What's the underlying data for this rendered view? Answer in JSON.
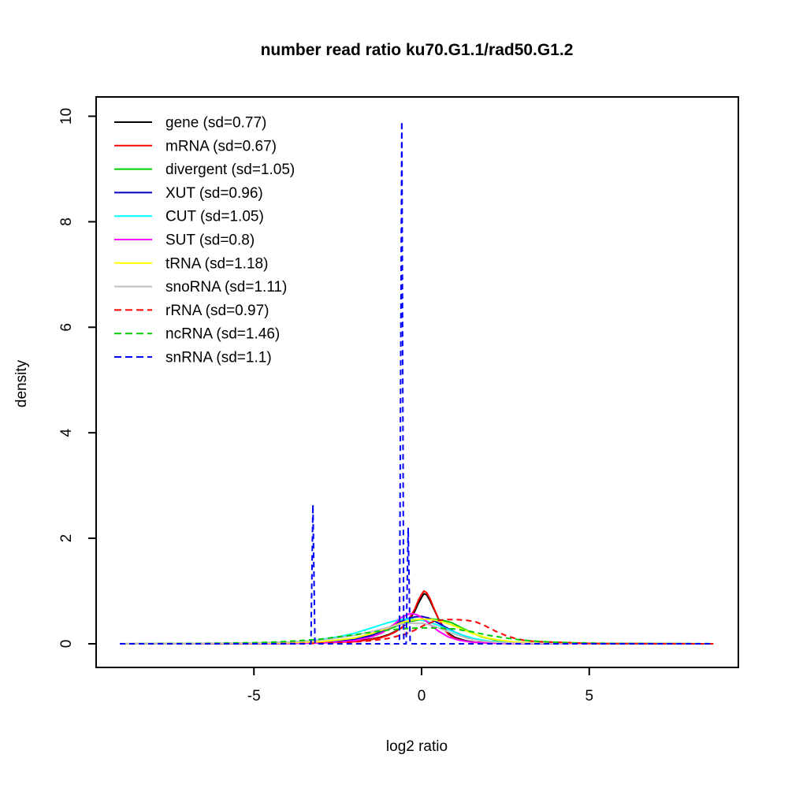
{
  "title": "number read ratio ku70.G1.1/rad50.G1.2",
  "chart_data": {
    "type": "line",
    "title": "number read ratio ku70.G1.1/rad50.G1.2",
    "xlabel": "log2 ratio",
    "ylabel": "density",
    "xlim": [
      -9.7,
      9.4
    ],
    "ylim": [
      -0.45,
      10.35
    ],
    "xticks": [
      -5,
      0,
      5
    ],
    "yticks": [
      0,
      2,
      4,
      6,
      8,
      10
    ],
    "grid": false,
    "legend_position": "top-left",
    "legend_box": false,
    "series": [
      {
        "name": "gene",
        "label": "gene (sd=0.77)",
        "sd": 0.77,
        "color": "#000000",
        "style": "solid",
        "points": [
          [
            -9,
            0
          ],
          [
            -5,
            0.005
          ],
          [
            -4,
            0.01
          ],
          [
            -3,
            0.02
          ],
          [
            -2.5,
            0.03
          ],
          [
            -2,
            0.05
          ],
          [
            -1.5,
            0.09
          ],
          [
            -1.2,
            0.13
          ],
          [
            -1,
            0.17
          ],
          [
            -0.8,
            0.23
          ],
          [
            -0.6,
            0.3
          ],
          [
            -0.4,
            0.42
          ],
          [
            -0.2,
            0.62
          ],
          [
            -0.1,
            0.76
          ],
          [
            0,
            0.88
          ],
          [
            0.07,
            0.95
          ],
          [
            0.15,
            0.93
          ],
          [
            0.25,
            0.82
          ],
          [
            0.35,
            0.68
          ],
          [
            0.5,
            0.48
          ],
          [
            0.65,
            0.32
          ],
          [
            0.8,
            0.2
          ],
          [
            1,
            0.12
          ],
          [
            1.3,
            0.06
          ],
          [
            1.6,
            0.03
          ],
          [
            2,
            0.02
          ],
          [
            2.5,
            0.01
          ],
          [
            3.5,
            0.005
          ],
          [
            5,
            0
          ],
          [
            8.7,
            0
          ]
        ]
      },
      {
        "name": "mRNA",
        "label": "mRNA (sd=0.67)",
        "sd": 0.67,
        "color": "#FF0000",
        "style": "solid",
        "points": [
          [
            -9,
            0
          ],
          [
            -5,
            0.005
          ],
          [
            -4,
            0.01
          ],
          [
            -3,
            0.02
          ],
          [
            -2.5,
            0.03
          ],
          [
            -2,
            0.04
          ],
          [
            -1.5,
            0.08
          ],
          [
            -1.2,
            0.12
          ],
          [
            -1,
            0.16
          ],
          [
            -0.8,
            0.22
          ],
          [
            -0.6,
            0.3
          ],
          [
            -0.4,
            0.44
          ],
          [
            -0.2,
            0.66
          ],
          [
            -0.1,
            0.82
          ],
          [
            0,
            0.94
          ],
          [
            0.07,
            1.0
          ],
          [
            0.15,
            0.97
          ],
          [
            0.25,
            0.86
          ],
          [
            0.35,
            0.7
          ],
          [
            0.5,
            0.48
          ],
          [
            0.65,
            0.3
          ],
          [
            0.8,
            0.18
          ],
          [
            1,
            0.1
          ],
          [
            1.3,
            0.05
          ],
          [
            1.6,
            0.025
          ],
          [
            2,
            0.015
          ],
          [
            2.5,
            0.008
          ],
          [
            3.5,
            0.004
          ],
          [
            5,
            0
          ],
          [
            8.7,
            0
          ]
        ]
      },
      {
        "name": "divergent",
        "label": "divergent (sd=1.05)",
        "sd": 1.05,
        "color": "#00CD00",
        "style": "solid",
        "points": [
          [
            -9,
            0
          ],
          [
            -5,
            0.01
          ],
          [
            -4,
            0.015
          ],
          [
            -3,
            0.03
          ],
          [
            -2.5,
            0.05
          ],
          [
            -2,
            0.09
          ],
          [
            -1.5,
            0.16
          ],
          [
            -1,
            0.27
          ],
          [
            -0.6,
            0.37
          ],
          [
            -0.3,
            0.43
          ],
          [
            0,
            0.46
          ],
          [
            0.3,
            0.47
          ],
          [
            0.6,
            0.45
          ],
          [
            0.9,
            0.4
          ],
          [
            1.2,
            0.3
          ],
          [
            1.5,
            0.21
          ],
          [
            1.8,
            0.13
          ],
          [
            2.2,
            0.07
          ],
          [
            2.6,
            0.04
          ],
          [
            3,
            0.02
          ],
          [
            4,
            0.01
          ],
          [
            5,
            0.005
          ],
          [
            8.7,
            0
          ]
        ]
      },
      {
        "name": "XUT",
        "label": "XUT (sd=0.96)",
        "sd": 0.96,
        "color": "#0000CD",
        "style": "solid",
        "points": [
          [
            -9,
            0
          ],
          [
            -4,
            0.01
          ],
          [
            -3,
            0.02
          ],
          [
            -2.5,
            0.04
          ],
          [
            -2,
            0.08
          ],
          [
            -1.5,
            0.16
          ],
          [
            -1,
            0.3
          ],
          [
            -0.7,
            0.4
          ],
          [
            -0.4,
            0.48
          ],
          [
            -0.2,
            0.51
          ],
          [
            0,
            0.52
          ],
          [
            0.2,
            0.49
          ],
          [
            0.4,
            0.43
          ],
          [
            0.7,
            0.32
          ],
          [
            1,
            0.22
          ],
          [
            1.4,
            0.12
          ],
          [
            1.8,
            0.06
          ],
          [
            2.3,
            0.03
          ],
          [
            3,
            0.015
          ],
          [
            4,
            0.005
          ],
          [
            8.7,
            0
          ]
        ]
      },
      {
        "name": "CUT",
        "label": "CUT (sd=1.05)",
        "sd": 1.05,
        "color": "#00FFFF",
        "style": "solid",
        "points": [
          [
            -9,
            0
          ],
          [
            -5,
            0.01
          ],
          [
            -4,
            0.03
          ],
          [
            -3.5,
            0.05
          ],
          [
            -3,
            0.08
          ],
          [
            -2.5,
            0.13
          ],
          [
            -2,
            0.2
          ],
          [
            -1.5,
            0.3
          ],
          [
            -1,
            0.4
          ],
          [
            -0.7,
            0.45
          ],
          [
            -0.4,
            0.47
          ],
          [
            -0.1,
            0.46
          ],
          [
            0.2,
            0.42
          ],
          [
            0.5,
            0.35
          ],
          [
            0.8,
            0.27
          ],
          [
            1.1,
            0.19
          ],
          [
            1.5,
            0.11
          ],
          [
            2,
            0.05
          ],
          [
            2.5,
            0.025
          ],
          [
            3,
            0.012
          ],
          [
            4,
            0.005
          ],
          [
            8.7,
            0
          ]
        ]
      },
      {
        "name": "SUT",
        "label": "SUT (sd=0.8)",
        "sd": 0.8,
        "color": "#FF00FF",
        "style": "solid",
        "points": [
          [
            -9,
            0
          ],
          [
            -4,
            0.005
          ],
          [
            -3,
            0.015
          ],
          [
            -2.5,
            0.03
          ],
          [
            -2,
            0.06
          ],
          [
            -1.5,
            0.13
          ],
          [
            -1.2,
            0.2
          ],
          [
            -1,
            0.28
          ],
          [
            -0.8,
            0.38
          ],
          [
            -0.6,
            0.5
          ],
          [
            -0.4,
            0.56
          ],
          [
            -0.25,
            0.57
          ],
          [
            -0.1,
            0.54
          ],
          [
            0.1,
            0.45
          ],
          [
            0.3,
            0.34
          ],
          [
            0.5,
            0.24
          ],
          [
            0.8,
            0.13
          ],
          [
            1.1,
            0.07
          ],
          [
            1.5,
            0.03
          ],
          [
            2,
            0.015
          ],
          [
            3,
            0.005
          ],
          [
            8.7,
            0
          ]
        ]
      },
      {
        "name": "tRNA",
        "label": "tRNA (sd=1.18)",
        "sd": 1.18,
        "color": "#FFFF00",
        "style": "solid",
        "points": [
          [
            -9,
            0
          ],
          [
            -5,
            0.01
          ],
          [
            -4,
            0.02
          ],
          [
            -3,
            0.04
          ],
          [
            -2.5,
            0.07
          ],
          [
            -2,
            0.11
          ],
          [
            -1.5,
            0.19
          ],
          [
            -1,
            0.3
          ],
          [
            -0.6,
            0.4
          ],
          [
            -0.3,
            0.45
          ],
          [
            0,
            0.47
          ],
          [
            0.3,
            0.46
          ],
          [
            0.6,
            0.42
          ],
          [
            0.9,
            0.36
          ],
          [
            1.2,
            0.28
          ],
          [
            1.5,
            0.2
          ],
          [
            1.9,
            0.12
          ],
          [
            2.3,
            0.07
          ],
          [
            2.8,
            0.035
          ],
          [
            3.3,
            0.02
          ],
          [
            4,
            0.01
          ],
          [
            5,
            0.005
          ],
          [
            8.7,
            0
          ]
        ]
      },
      {
        "name": "snoRNA",
        "label": "snoRNA (sd=1.11)",
        "sd": 1.11,
        "color": "#BEBEBE",
        "style": "solid",
        "points": [
          [
            -9,
            0.003
          ],
          [
            -7,
            0.006
          ],
          [
            -6,
            0.01
          ],
          [
            -5,
            0.018
          ],
          [
            -4.5,
            0.025
          ],
          [
            -4,
            0.035
          ],
          [
            -3.5,
            0.05
          ],
          [
            -3,
            0.07
          ],
          [
            -2.5,
            0.11
          ],
          [
            -2,
            0.16
          ],
          [
            -1.5,
            0.23
          ],
          [
            -1,
            0.31
          ],
          [
            -0.6,
            0.37
          ],
          [
            -0.3,
            0.39
          ],
          [
            0,
            0.39
          ],
          [
            0.3,
            0.35
          ],
          [
            0.6,
            0.28
          ],
          [
            1,
            0.18
          ],
          [
            1.4,
            0.1
          ],
          [
            1.8,
            0.05
          ],
          [
            2.3,
            0.025
          ],
          [
            3,
            0.012
          ],
          [
            4,
            0.006
          ],
          [
            5,
            0.003
          ],
          [
            8.7,
            0
          ]
        ]
      },
      {
        "name": "rRNA",
        "label": "rRNA (sd=0.97)",
        "sd": 0.97,
        "color": "#FF0000",
        "style": "dashed",
        "points": [
          [
            -9,
            0
          ],
          [
            -4,
            0.005
          ],
          [
            -3,
            0.01
          ],
          [
            -2.5,
            0.02
          ],
          [
            -2,
            0.035
          ],
          [
            -1.5,
            0.06
          ],
          [
            -1,
            0.1
          ],
          [
            -0.5,
            0.18
          ],
          [
            -0.2,
            0.26
          ],
          [
            0.1,
            0.36
          ],
          [
            0.4,
            0.43
          ],
          [
            0.7,
            0.46
          ],
          [
            1,
            0.46
          ],
          [
            1.3,
            0.45
          ],
          [
            1.6,
            0.42
          ],
          [
            1.9,
            0.34
          ],
          [
            2.2,
            0.24
          ],
          [
            2.5,
            0.16
          ],
          [
            2.8,
            0.1
          ],
          [
            3.1,
            0.06
          ],
          [
            3.5,
            0.04
          ],
          [
            4,
            0.03
          ],
          [
            4.3,
            0.025
          ],
          [
            4.7,
            0.015
          ],
          [
            5,
            0.008
          ],
          [
            5.5,
            0.004
          ],
          [
            8.7,
            0
          ]
        ]
      },
      {
        "name": "ncRNA",
        "label": "ncRNA (sd=1.46)",
        "sd": 1.46,
        "color": "#00CD00",
        "style": "dashed",
        "points": [
          [
            -9,
            0
          ],
          [
            -6.5,
            0.008
          ],
          [
            -6,
            0.012
          ],
          [
            -5,
            0.02
          ],
          [
            -4.5,
            0.03
          ],
          [
            -4,
            0.045
          ],
          [
            -3.5,
            0.065
          ],
          [
            -3,
            0.09
          ],
          [
            -2.5,
            0.13
          ],
          [
            -2,
            0.17
          ],
          [
            -1.5,
            0.22
          ],
          [
            -1,
            0.26
          ],
          [
            -0.5,
            0.29
          ],
          [
            0,
            0.3
          ],
          [
            0.5,
            0.3
          ],
          [
            1,
            0.28
          ],
          [
            1.5,
            0.23
          ],
          [
            2,
            0.16
          ],
          [
            2.5,
            0.11
          ],
          [
            3,
            0.07
          ],
          [
            3.5,
            0.045
          ],
          [
            4,
            0.03
          ],
          [
            4.5,
            0.02
          ],
          [
            5,
            0.013
          ],
          [
            5.5,
            0.009
          ],
          [
            6,
            0.006
          ],
          [
            7,
            0.004
          ],
          [
            8.7,
            0.003
          ]
        ]
      },
      {
        "name": "snRNA",
        "label": "snRNA (sd=1.1)",
        "sd": 1.1,
        "color": "#0000FF",
        "style": "dashed",
        "points": [
          [
            -9,
            0
          ],
          [
            -3.3,
            0
          ],
          [
            -3.24,
            2.64
          ],
          [
            -3.18,
            0
          ],
          [
            -0.66,
            0
          ],
          [
            -0.59,
            9.9
          ],
          [
            -0.53,
            0
          ],
          [
            -0.46,
            0
          ],
          [
            -0.4,
            2.2
          ],
          [
            -0.34,
            0
          ],
          [
            0,
            0
          ],
          [
            8.7,
            0
          ]
        ]
      }
    ]
  }
}
